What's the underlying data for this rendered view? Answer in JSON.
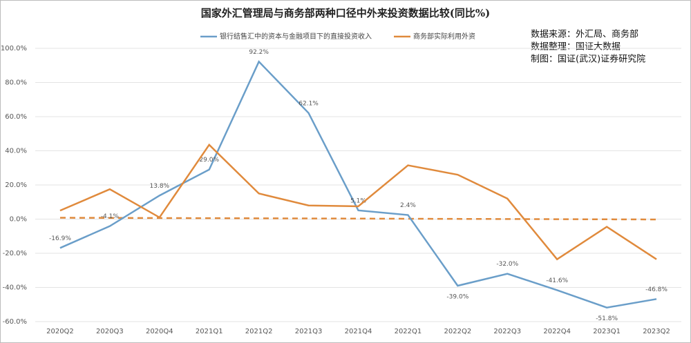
{
  "chart_data": {
    "type": "line",
    "title": "国家外汇管理局与商务部两种口径中外来投资数据比较(同比%)",
    "annotations": [
      "数据来源：外汇局、商务部",
      "数据整理：国证大数据",
      "制图：国证(武汉)证券研究院"
    ],
    "categories": [
      "2020Q2",
      "2020Q3",
      "2020Q4",
      "2021Q1",
      "2021Q2",
      "2021Q3",
      "2021Q4",
      "2022Q1",
      "2022Q2",
      "2022Q3",
      "2022Q4",
      "2023Q1",
      "2023Q2"
    ],
    "series": [
      {
        "name": "银行结售汇中的资本与金融项目下的直接投资收入",
        "color": "#6a9ec9",
        "values": [
          -16.9,
          -4.1,
          13.8,
          29.0,
          92.2,
          62.1,
          5.1,
          2.4,
          -39.0,
          -32.0,
          -41.6,
          -51.8,
          -46.8
        ],
        "value_labels": [
          "-16.9%",
          "-4.1%",
          "13.8%",
          "29.0%",
          "92.2%",
          "62.1%",
          "5.1%",
          "2.4%",
          "-39.0%",
          "-32.0%",
          "-41.6%",
          "-51.8%",
          "-46.8%"
        ]
      },
      {
        "name": "商务部实际利用外资",
        "color": "#e08a3c",
        "values": [
          5,
          17.5,
          1,
          43.5,
          15,
          8,
          7.5,
          31.5,
          26,
          12,
          -23.5,
          -4.5,
          -23.5
        ]
      }
    ],
    "trend": {
      "color": "#e08a3c",
      "values": [
        0.8,
        -0.2
      ]
    },
    "ylim": [
      -60,
      100
    ],
    "yticks": [
      {
        "value": -60,
        "label": "-60.0%"
      },
      {
        "value": -40,
        "label": "-40.0%"
      },
      {
        "value": -20,
        "label": "-20.0%"
      },
      {
        "value": 0,
        "label": "0.0%"
      },
      {
        "value": 20,
        "label": "20.0%"
      },
      {
        "value": 40,
        "label": "40.0%"
      },
      {
        "value": 60,
        "label": "60.0%"
      },
      {
        "value": 80,
        "label": "80.0%"
      },
      {
        "value": 100,
        "label": "100.0%"
      }
    ],
    "grid": true
  }
}
